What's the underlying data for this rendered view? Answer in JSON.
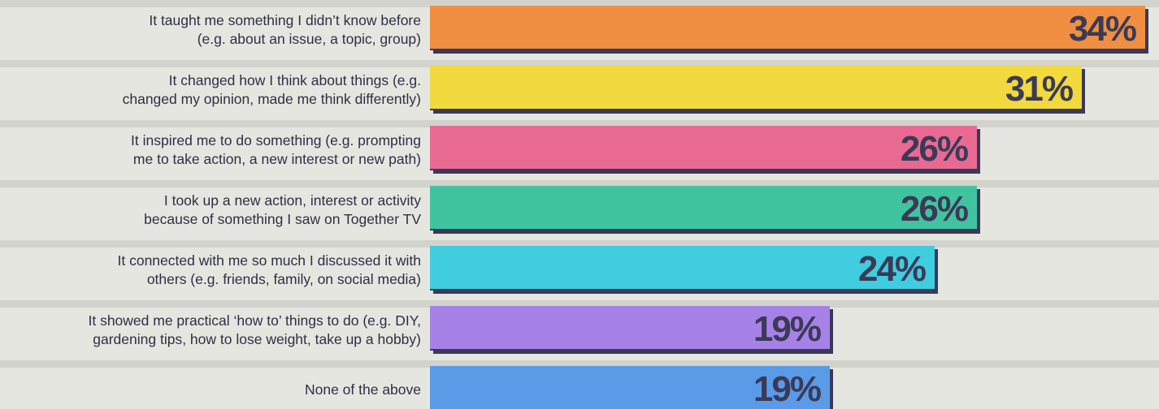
{
  "chart_data": {
    "type": "bar",
    "orientation": "horizontal",
    "categories": [
      "It taught me something I didn’t know before (e.g. about an issue, a topic, group)",
      "It changed how I think about things (e.g. changed my opinion, made me think differently)",
      "It inspired me to do something (e.g. prompting me to take action, a new interest or new path)",
      "I took up a new action, interest or activity because of something I saw on Together TV",
      "It connected with me so much I discussed it with others (e.g. friends, family, on social media)",
      "It showed me practical ‘how to’ things to do (e.g. DIY, gardening tips, how to lose weight, take up a hobby)",
      "None of the above"
    ],
    "label_lines": [
      [
        "It taught me something I didn’t know before",
        "(e.g. about an issue, a topic, group)"
      ],
      [
        "It changed how I think about things (e.g.",
        "changed my opinion, made me think differently)"
      ],
      [
        "It inspired me to do something (e.g. prompting",
        "me to take action, a new interest or new path)"
      ],
      [
        "I took up a new action, interest or activity",
        "because of something I saw on Together TV"
      ],
      [
        "It connected with me so much I discussed it with",
        "others (e.g. friends, family, on social media)"
      ],
      [
        "It showed me practical ‘how to’ things to do (e.g. DIY,",
        "gardening tips, how to lose weight, take up a hobby)"
      ],
      [
        "None of the above"
      ]
    ],
    "values": [
      34,
      31,
      26,
      26,
      24,
      19,
      19
    ],
    "value_labels": [
      "34%",
      "31%",
      "26%",
      "26%",
      "24%",
      "19%",
      "19%"
    ],
    "colors": [
      "#f08f41",
      "#f1d93e",
      "#e86a93",
      "#40c4a0",
      "#40cde0",
      "#a682e8",
      "#5a9be8"
    ],
    "shadow_color": "#3b3a56",
    "xlim": [
      0,
      34
    ],
    "title": "",
    "xlabel": "",
    "ylabel": "",
    "grid": false,
    "legend": "none"
  }
}
